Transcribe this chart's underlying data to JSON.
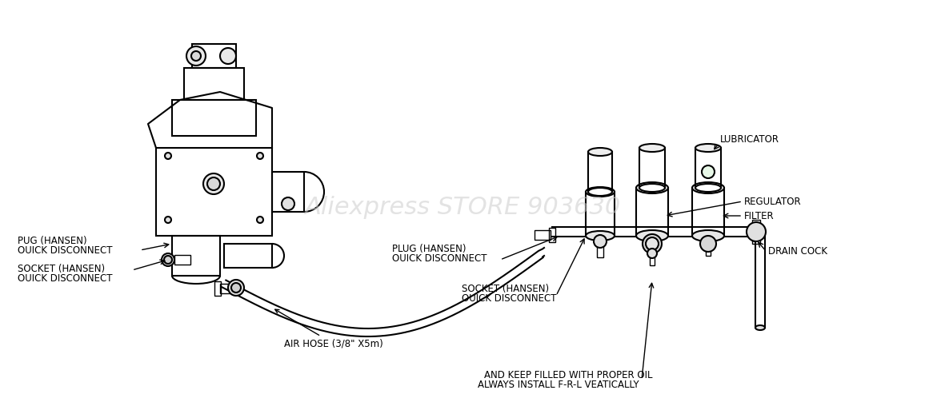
{
  "bg_color": "#ffffff",
  "text_color": "#000000",
  "line_color": "#000000",
  "watermark": "Aliexpress STORE 903630",
  "watermark_color": "#cccccc",
  "labels": {
    "air_hose": "AIR HOSE (3/8\" X5m)",
    "socket_left_1": "OUICK DISCONNECT",
    "socket_left_2": "SOCKET (HANSEN)",
    "plug_left_1": "OUICK DISCONNECT",
    "plug_left_2": "PUG (HANSEN)",
    "socket_right_1": "OUICK DISCONNECT",
    "socket_right_2": "SOCKET (HANSEN)",
    "plug_right_1": "OUICK DISCONNECT",
    "plug_right_2": "PLUG (HANSEN)",
    "always_1": "ALWAYS INSTALL F-R-L VEATICALLY",
    "always_2": "AND KEEP FILLED WITH PROPER OIL",
    "drain_cock": "DRAIN COCK",
    "filter": "FILTER",
    "regulator": "REGULATOR",
    "lubricator": "LUBRICATOR"
  },
  "figsize": [
    11.56,
    5.23
  ],
  "dpi": 100
}
